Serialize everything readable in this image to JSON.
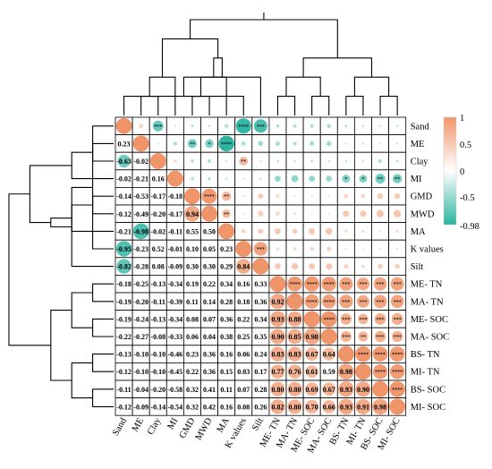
{
  "chart_data": {
    "type": "heatmap",
    "variables": [
      "Sand",
      "ME",
      "Clay",
      "MI",
      "GMD",
      "MWD",
      "MA",
      "K values",
      "Silt",
      "ME- TN",
      "MA- TN",
      "ME- SOC",
      "MA- SOC",
      "BS- TN",
      "MI- TN",
      "BS- SOC",
      "MI- SOC"
    ],
    "x_labels": [
      "Sand",
      "ME",
      "Clay",
      "MI",
      "GMD",
      "MWD",
      "MA",
      "K values",
      "Silt",
      "ME- TN",
      "MA- TN",
      "ME- SOC",
      "MA- SOC",
      "BS- TN",
      "MI- TN",
      "BS- SOC",
      "MI- SOC"
    ],
    "y_labels": [
      "Sand",
      "ME",
      "Clay",
      "MI",
      "GMD",
      "MWD",
      "MA",
      "K values",
      "Silt",
      "ME- TN",
      "MA- TN",
      "ME- SOC",
      "MA- SOC",
      "BS- TN",
      "MI- TN",
      "BS- SOC",
      "MI- SOC"
    ],
    "lower_values": [
      [],
      [
        "0.23"
      ],
      [
        "-0.63",
        "-0.02"
      ],
      [
        "-0.02",
        "-0.21",
        "0.16"
      ],
      [
        "-0.14",
        "-0.53",
        "-0.17",
        "-0.18"
      ],
      [
        "-0.12",
        "-0.49",
        "-0.20",
        "-0.17",
        "0.94"
      ],
      [
        "-0.21",
        "-0.98",
        "-0.02",
        "-0.11",
        "0.55",
        "0.50"
      ],
      [
        "-0.95",
        "-0.23",
        "0.52",
        "-0.01",
        "0.10",
        "0.05",
        "0.23"
      ],
      [
        "-0.82",
        "-0.28",
        "0.08",
        "-0.09",
        "0.30",
        "0.30",
        "0.29",
        "0.84"
      ],
      [
        "-0.18",
        "-0.25",
        "-0.13",
        "-0.34",
        "0.19",
        "0.22",
        "0.34",
        "0.16",
        "0.33"
      ],
      [
        "-0.19",
        "-0.20",
        "-0.11",
        "-0.39",
        "0.11",
        "0.14",
        "0.28",
        "0.18",
        "0.36",
        "0.92"
      ],
      [
        "-0.19",
        "-0.24",
        "-0.13",
        "-0.34",
        "0.08",
        "0.07",
        "0.36",
        "0.22",
        "0.34",
        "0.93",
        "0.88"
      ],
      [
        "-0.22",
        "-0.27",
        "-0.08",
        "-0.33",
        "0.06",
        "0.04",
        "0.38",
        "0.25",
        "0.35",
        "0.90",
        "0.85",
        "0.98"
      ],
      [
        "-0.13",
        "-0.10",
        "-0.10",
        "-0.46",
        "0.23",
        "0.36",
        "0.16",
        "0.06",
        "0.24",
        "0.83",
        "0.83",
        "0.67",
        "0.64"
      ],
      [
        "-0.12",
        "-0.10",
        "-0.10",
        "-0.45",
        "0.22",
        "0.36",
        "0.15",
        "0.03",
        "0.17",
        "0.77",
        "0.76",
        "0.61",
        "0.59",
        "0.98"
      ],
      [
        "-0.11",
        "-0.04",
        "-0.20",
        "-0.58",
        "0.32",
        "0.41",
        "0.11",
        "0.07",
        "0.28",
        "0.80",
        "0.80",
        "0.69",
        "0.67",
        "0.93",
        "0.90"
      ],
      [
        "-0.12",
        "-0.09",
        "-0.14",
        "-0.54",
        "0.32",
        "0.42",
        "0.16",
        "0.08",
        "0.26",
        "0.82",
        "0.80",
        "0.70",
        "0.66",
        "0.93",
        "0.91",
        "0.98"
      ]
    ],
    "significance_codes": [
      "*",
      "**",
      "***",
      "****"
    ],
    "colorbar": {
      "min": -0.98,
      "max": 1,
      "ticks": [
        "1",
        "0.5",
        "0",
        "-0.5",
        "-0.98"
      ]
    },
    "colors": {
      "positive": "#F0956A",
      "negative": "#2BB3A0",
      "neutral": "#FFFFFF"
    }
  }
}
